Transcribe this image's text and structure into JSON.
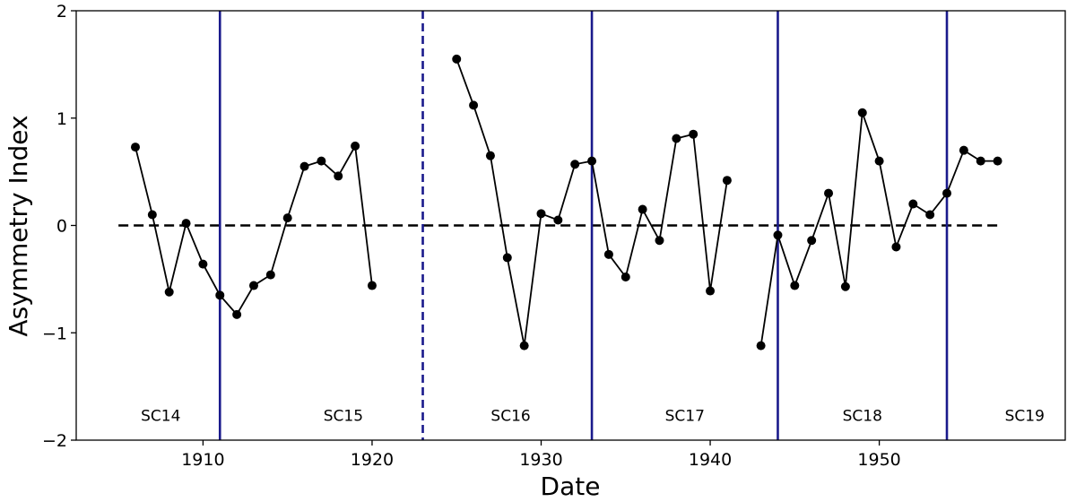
{
  "chart_data": {
    "type": "line",
    "title": "",
    "xlabel": "Date",
    "ylabel": "Asymmetry Index",
    "xlim": [
      1902.5,
      1961
    ],
    "ylim": [
      -2,
      2
    ],
    "xticks": [
      1910,
      1920,
      1930,
      1940,
      1950
    ],
    "yticks": [
      -2,
      -1,
      0,
      1,
      2
    ],
    "ytick_labels": [
      "−2",
      "−1",
      "0",
      "1",
      "2"
    ],
    "grid": false,
    "reference_line": {
      "y": 0,
      "style": "dashed",
      "color": "#000000",
      "x_range": [
        1905,
        1957
      ]
    },
    "cycle_boundaries": [
      {
        "x": 1911,
        "style": "solid"
      },
      {
        "x": 1923,
        "style": "dashed"
      },
      {
        "x": 1933,
        "style": "solid"
      },
      {
        "x": 1944,
        "style": "solid"
      },
      {
        "x": 1954,
        "style": "solid"
      }
    ],
    "cycle_labels": [
      {
        "label": "SC14",
        "x": 1907.5
      },
      {
        "label": "SC15",
        "x": 1918.3
      },
      {
        "label": "SC16",
        "x": 1928.2
      },
      {
        "label": "SC17",
        "x": 1938.5
      },
      {
        "label": "SC18",
        "x": 1949
      },
      {
        "label": "SC19",
        "x": 1958.6
      }
    ],
    "cycle_label_y": -1.82,
    "colors": {
      "series": "#000000",
      "boundary": "#1a1a8c",
      "axes": "#000000"
    },
    "series": [
      {
        "segments": [
          {
            "x": [
              1906,
              1907,
              1908,
              1909,
              1910,
              1911,
              1912,
              1913,
              1914,
              1915,
              1916,
              1917,
              1918,
              1919,
              1920
            ],
            "y": [
              0.73,
              0.1,
              -0.62,
              0.02,
              -0.36,
              -0.65,
              -0.83,
              -0.56,
              -0.46,
              0.07,
              0.55,
              0.6,
              0.46,
              0.74,
              -0.56
            ]
          },
          {
            "x": [
              1925,
              1926,
              1927,
              1928,
              1929,
              1930,
              1931,
              1932,
              1933,
              1934,
              1935,
              1936,
              1937,
              1938,
              1939,
              1940,
              1941
            ],
            "y": [
              1.55,
              1.12,
              0.65,
              -0.3,
              -1.12,
              0.11,
              0.05,
              0.57,
              0.6,
              -0.27,
              -0.48,
              0.15,
              -0.14,
              0.81,
              0.85,
              -0.61,
              0.42
            ]
          },
          {
            "x": [
              1943,
              1944,
              1945,
              1946,
              1947,
              1948,
              1949,
              1950,
              1951,
              1952,
              1953,
              1954,
              1955,
              1956,
              1957
            ],
            "y": [
              -1.12,
              -0.09,
              -0.56,
              -0.14,
              0.3,
              -0.57,
              1.05,
              0.6,
              -0.2,
              0.2,
              0.1,
              0.3,
              0.7,
              0.6,
              0.6
            ]
          }
        ]
      }
    ]
  }
}
